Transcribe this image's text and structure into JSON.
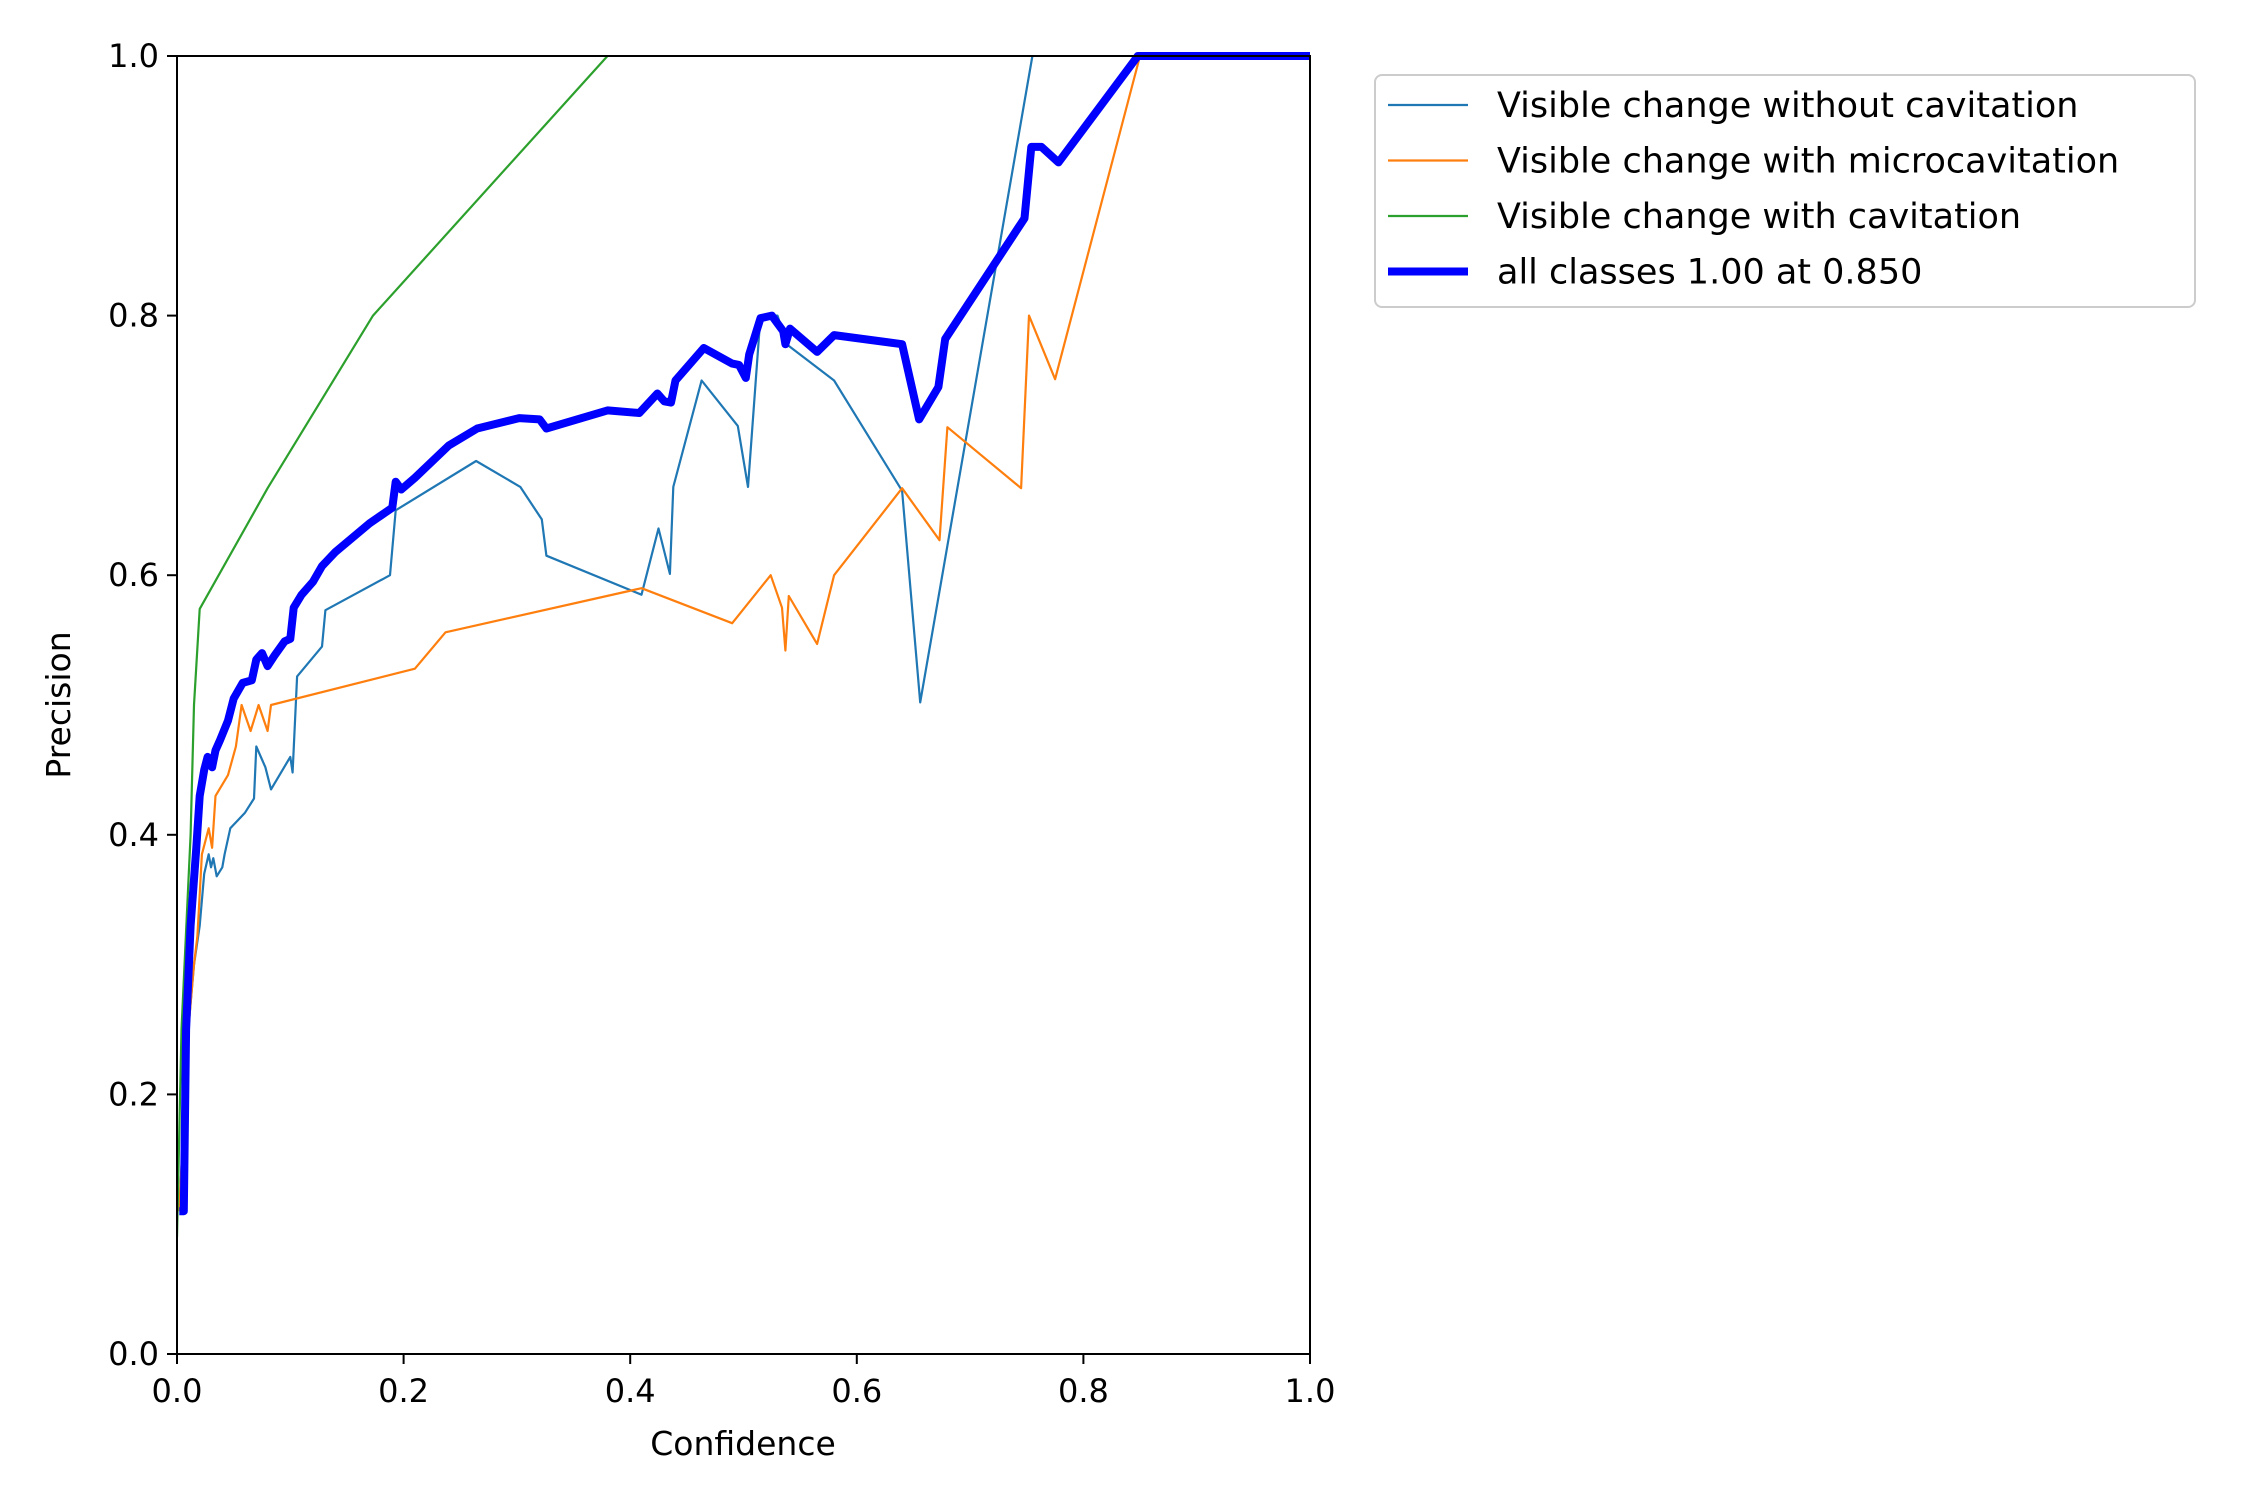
{
  "chart_data": {
    "type": "line",
    "title": "",
    "xlabel": "Confidence",
    "ylabel": "Precision",
    "xlim": [
      0,
      1
    ],
    "ylim": [
      0,
      1
    ],
    "xticks": [
      "0.0",
      "0.2",
      "0.4",
      "0.6",
      "0.8",
      "1.0"
    ],
    "yticks": [
      "0.0",
      "0.2",
      "0.4",
      "0.6",
      "0.8",
      "1.0"
    ],
    "grid": false,
    "legend_position": "outside top-right",
    "series": [
      {
        "name": "Visible change without cavitation",
        "color": "#1f77b4",
        "width": "thin",
        "points": [
          [
            0.002,
            0.11
          ],
          [
            0.01,
            0.25
          ],
          [
            0.015,
            0.3
          ],
          [
            0.02,
            0.33
          ],
          [
            0.024,
            0.37
          ],
          [
            0.028,
            0.385
          ],
          [
            0.03,
            0.375
          ],
          [
            0.032,
            0.382
          ],
          [
            0.035,
            0.368
          ],
          [
            0.04,
            0.375
          ],
          [
            0.042,
            0.385
          ],
          [
            0.047,
            0.405
          ],
          [
            0.06,
            0.417
          ],
          [
            0.068,
            0.428
          ],
          [
            0.07,
            0.468
          ],
          [
            0.078,
            0.452
          ],
          [
            0.083,
            0.435
          ],
          [
            0.1,
            0.46
          ],
          [
            0.102,
            0.448
          ],
          [
            0.106,
            0.522
          ],
          [
            0.128,
            0.545
          ],
          [
            0.131,
            0.573
          ],
          [
            0.188,
            0.6
          ],
          [
            0.193,
            0.65
          ],
          [
            0.264,
            0.688
          ],
          [
            0.303,
            0.668
          ],
          [
            0.322,
            0.643
          ],
          [
            0.326,
            0.615
          ],
          [
            0.41,
            0.585
          ],
          [
            0.425,
            0.636
          ],
          [
            0.435,
            0.601
          ],
          [
            0.438,
            0.668
          ],
          [
            0.463,
            0.75
          ],
          [
            0.495,
            0.715
          ],
          [
            0.504,
            0.668
          ],
          [
            0.515,
            0.8
          ],
          [
            0.53,
            0.8
          ],
          [
            0.538,
            0.778
          ],
          [
            0.58,
            0.75
          ],
          [
            0.64,
            0.665
          ],
          [
            0.656,
            0.502
          ],
          [
            0.755,
            1.0
          ]
        ]
      },
      {
        "name": "Visible change with microcavitation",
        "color": "#ff7f0e",
        "width": "thin",
        "points": [
          [
            0.002,
            0.11
          ],
          [
            0.01,
            0.25
          ],
          [
            0.015,
            0.3
          ],
          [
            0.018,
            0.322
          ],
          [
            0.022,
            0.385
          ],
          [
            0.028,
            0.405
          ],
          [
            0.031,
            0.39
          ],
          [
            0.034,
            0.43
          ],
          [
            0.045,
            0.446
          ],
          [
            0.052,
            0.468
          ],
          [
            0.057,
            0.5
          ],
          [
            0.065,
            0.48
          ],
          [
            0.072,
            0.5
          ],
          [
            0.08,
            0.48
          ],
          [
            0.083,
            0.5
          ],
          [
            0.21,
            0.528
          ],
          [
            0.237,
            0.556
          ],
          [
            0.41,
            0.59
          ],
          [
            0.49,
            0.563
          ],
          [
            0.524,
            0.6
          ],
          [
            0.534,
            0.575
          ],
          [
            0.537,
            0.542
          ],
          [
            0.54,
            0.584
          ],
          [
            0.565,
            0.547
          ],
          [
            0.58,
            0.6
          ],
          [
            0.64,
            0.667
          ],
          [
            0.673,
            0.627
          ],
          [
            0.68,
            0.714
          ],
          [
            0.745,
            0.667
          ],
          [
            0.752,
            0.8
          ],
          [
            0.775,
            0.751
          ],
          [
            0.85,
            1.0
          ],
          [
            1.0,
            1.0
          ]
        ]
      },
      {
        "name": "Visible change with cavitation",
        "color": "#2ca02c",
        "width": "thin",
        "points": [
          [
            0.0,
            0.09
          ],
          [
            0.004,
            0.25
          ],
          [
            0.012,
            0.4
          ],
          [
            0.015,
            0.5
          ],
          [
            0.02,
            0.574
          ],
          [
            0.08,
            0.667
          ],
          [
            0.173,
            0.8
          ],
          [
            0.38,
            1.0
          ]
        ]
      },
      {
        "name": "all classes 1.00 at 0.850",
        "color": "#0000ff",
        "width": "thick",
        "points": [
          [
            0.002,
            0.11
          ],
          [
            0.006,
            0.11
          ],
          [
            0.008,
            0.25
          ],
          [
            0.012,
            0.33
          ],
          [
            0.017,
            0.39
          ],
          [
            0.02,
            0.43
          ],
          [
            0.024,
            0.45
          ],
          [
            0.027,
            0.46
          ],
          [
            0.031,
            0.452
          ],
          [
            0.034,
            0.465
          ],
          [
            0.038,
            0.473
          ],
          [
            0.045,
            0.488
          ],
          [
            0.05,
            0.505
          ],
          [
            0.058,
            0.517
          ],
          [
            0.066,
            0.519
          ],
          [
            0.07,
            0.535
          ],
          [
            0.075,
            0.54
          ],
          [
            0.08,
            0.53
          ],
          [
            0.086,
            0.538
          ],
          [
            0.095,
            0.549
          ],
          [
            0.1,
            0.551
          ],
          [
            0.103,
            0.575
          ],
          [
            0.11,
            0.585
          ],
          [
            0.12,
            0.595
          ],
          [
            0.128,
            0.607
          ],
          [
            0.14,
            0.618
          ],
          [
            0.17,
            0.64
          ],
          [
            0.19,
            0.652
          ],
          [
            0.193,
            0.672
          ],
          [
            0.198,
            0.666
          ],
          [
            0.21,
            0.675
          ],
          [
            0.24,
            0.7
          ],
          [
            0.265,
            0.713
          ],
          [
            0.302,
            0.721
          ],
          [
            0.32,
            0.72
          ],
          [
            0.326,
            0.713
          ],
          [
            0.38,
            0.727
          ],
          [
            0.408,
            0.725
          ],
          [
            0.424,
            0.74
          ],
          [
            0.43,
            0.734
          ],
          [
            0.436,
            0.733
          ],
          [
            0.44,
            0.75
          ],
          [
            0.465,
            0.775
          ],
          [
            0.49,
            0.763
          ],
          [
            0.496,
            0.762
          ],
          [
            0.502,
            0.752
          ],
          [
            0.505,
            0.77
          ],
          [
            0.515,
            0.798
          ],
          [
            0.525,
            0.8
          ],
          [
            0.535,
            0.788
          ],
          [
            0.537,
            0.778
          ],
          [
            0.541,
            0.79
          ],
          [
            0.565,
            0.772
          ],
          [
            0.58,
            0.785
          ],
          [
            0.64,
            0.778
          ],
          [
            0.655,
            0.72
          ],
          [
            0.672,
            0.745
          ],
          [
            0.678,
            0.782
          ],
          [
            0.748,
            0.875
          ],
          [
            0.754,
            0.93
          ],
          [
            0.763,
            0.93
          ],
          [
            0.778,
            0.918
          ],
          [
            0.848,
            1.0
          ],
          [
            1.0,
            1.0
          ]
        ]
      }
    ]
  }
}
